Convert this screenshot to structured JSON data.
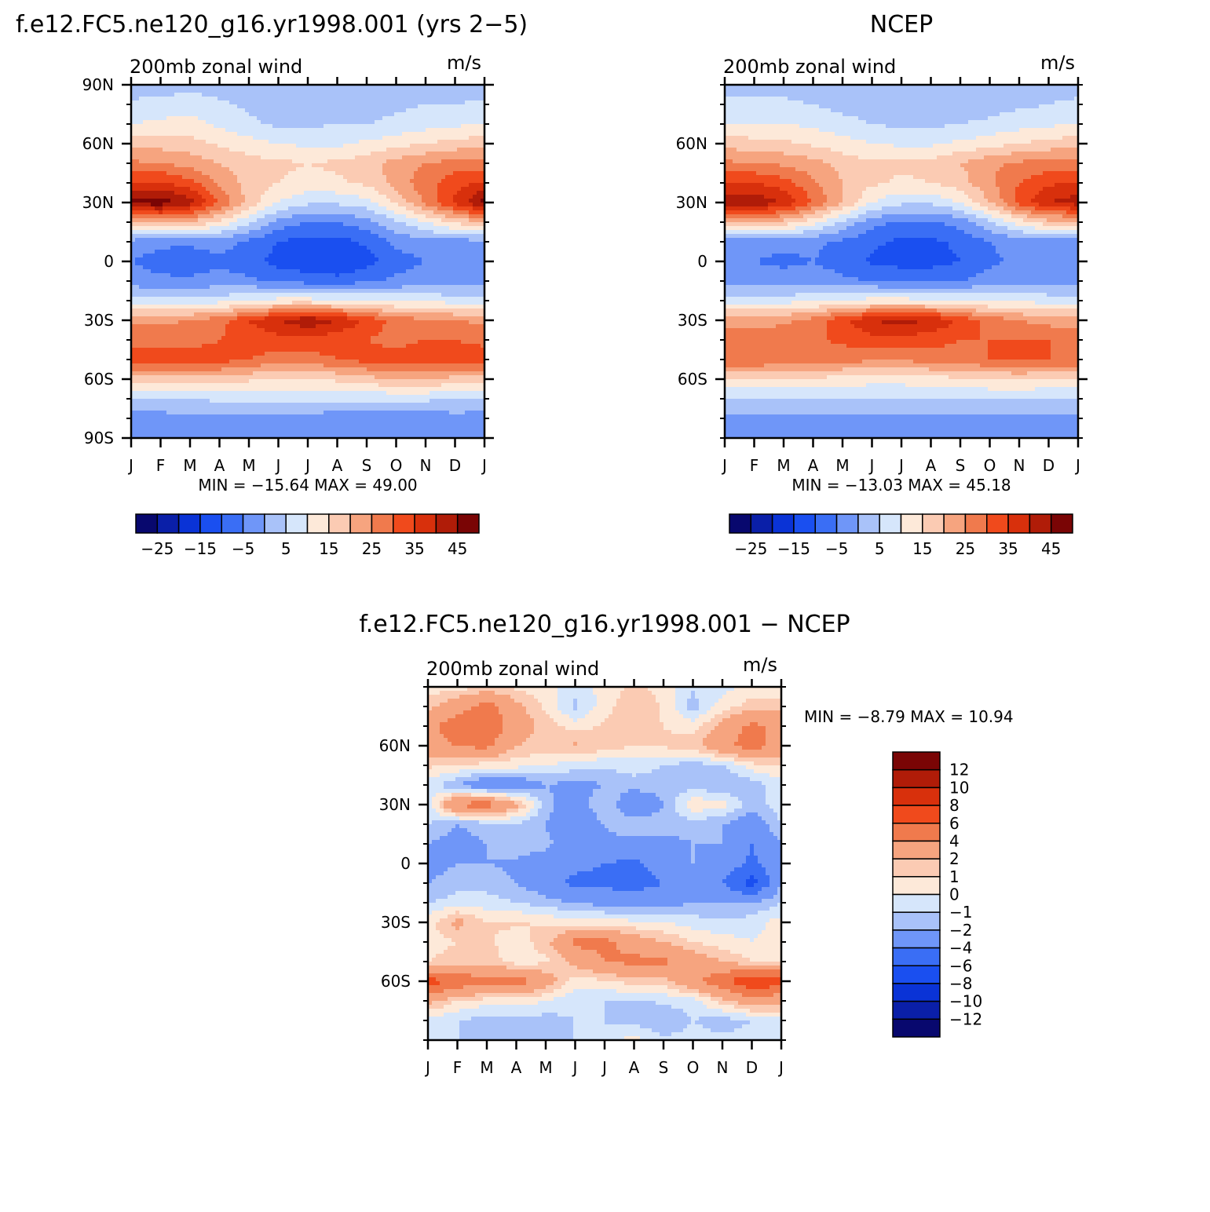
{
  "colors": {
    "full_scale": [
      "#08086e",
      "#0a1fa8",
      "#0a33d6",
      "#1a4ff0",
      "#3a6ef5",
      "#6f96f8",
      "#a9c2f9",
      "#d6e6fb",
      "#fde9d9",
      "#fbcbb3",
      "#f6a47f",
      "#f07a4d",
      "#f04a1c",
      "#d8300c",
      "#b01c08",
      "#7a0505"
    ],
    "diff_scale": [
      "#08086e",
      "#0a1fa8",
      "#0a33d6",
      "#1a4ff0",
      "#3a6ef5",
      "#6f96f8",
      "#a9c2f9",
      "#d6e6fb",
      "#fde9d9",
      "#fbcbb3",
      "#f6a47f",
      "#f07a4d",
      "#f04a1c",
      "#d8300c",
      "#b01c08",
      "#7a0505"
    ]
  },
  "chart_data": [
    {
      "type": "heatmap",
      "panel": "model",
      "title": "f.e12.FC5.ne120_g16.yr1998.001 (yrs 2−5)",
      "left_label": "200mb  zonal  wind",
      "right_label": "m/s",
      "x_ticks": [
        "J",
        "F",
        "M",
        "A",
        "M",
        "J",
        "J",
        "A",
        "S",
        "O",
        "N",
        "D",
        "J"
      ],
      "y_ticks": [
        "90N",
        "60N",
        "30N",
        "0",
        "30S",
        "60S",
        "90S"
      ],
      "stats": "MIN = −15.64  MAX =   49.00",
      "min": -15.64,
      "max": 49.0,
      "colorbar_labels": [
        "−25",
        "−15",
        "−5",
        "5",
        "15",
        "25",
        "35",
        "45"
      ],
      "levels": [
        -30,
        -25,
        -20,
        -15,
        -10,
        -5,
        0,
        5,
        10,
        15,
        20,
        25,
        30,
        35,
        40,
        45,
        50
      ],
      "latitudes": [
        90,
        80,
        70,
        60,
        50,
        40,
        30,
        20,
        10,
        0,
        -10,
        -20,
        -30,
        -40,
        -50,
        -60,
        -70,
        -80,
        -90
      ],
      "months": [
        "Jan",
        "Feb",
        "Mar",
        "Apr",
        "May",
        "Jun",
        "Jul",
        "Aug",
        "Sep",
        "Oct",
        "Nov",
        "Dec",
        "Jan"
      ],
      "z": [
        [
          2,
          2,
          3,
          2,
          2,
          2,
          2,
          3,
          3,
          2,
          2,
          2,
          2
        ],
        [
          6,
          7,
          8,
          6,
          4,
          2,
          2,
          3,
          3,
          4,
          5,
          5,
          6
        ],
        [
          10,
          11,
          12,
          9,
          6,
          4,
          4,
          5,
          5,
          6,
          8,
          9,
          10
        ],
        [
          18,
          18,
          17,
          14,
          12,
          10,
          9,
          9,
          11,
          13,
          15,
          17,
          18
        ],
        [
          26,
          25,
          23,
          20,
          17,
          16,
          15,
          16,
          18,
          22,
          25,
          27,
          26
        ],
        [
          36,
          36,
          32,
          24,
          18,
          15,
          13,
          14,
          16,
          22,
          28,
          33,
          36
        ],
        [
          47,
          48,
          42,
          30,
          18,
          10,
          6,
          6,
          8,
          16,
          26,
          36,
          47
        ],
        [
          20,
          22,
          20,
          14,
          6,
          -2,
          -5,
          -5,
          -2,
          4,
          10,
          16,
          20
        ],
        [
          -2,
          -4,
          -4,
          -3,
          -6,
          -10,
          -12,
          -12,
          -9,
          -4,
          -2,
          -2,
          -2
        ],
        [
          -5,
          -7,
          -8,
          -6,
          -8,
          -12,
          -14,
          -15,
          -12,
          -7,
          -5,
          -5,
          -5
        ],
        [
          -3,
          -4,
          -4,
          -3,
          -4,
          -6,
          -7,
          -8,
          -6,
          -4,
          -3,
          -3,
          -3
        ],
        [
          8,
          7,
          7,
          8,
          10,
          12,
          12,
          11,
          10,
          9,
          9,
          8,
          8
        ],
        [
          24,
          24,
          25,
          28,
          35,
          40,
          44,
          40,
          34,
          28,
          26,
          25,
          24
        ],
        [
          28,
          28,
          28,
          30,
          32,
          33,
          33,
          32,
          30,
          28,
          30,
          30,
          28
        ],
        [
          34,
          34,
          33,
          32,
          30,
          28,
          28,
          30,
          32,
          33,
          34,
          34,
          34
        ],
        [
          18,
          18,
          18,
          18,
          16,
          14,
          14,
          16,
          18,
          20,
          20,
          18,
          18
        ],
        [
          4,
          4,
          5,
          6,
          6,
          6,
          6,
          6,
          6,
          6,
          6,
          5,
          4
        ],
        [
          -2,
          -2,
          -1,
          -1,
          -1,
          -2,
          -2,
          -3,
          -3,
          -3,
          -3,
          -2,
          -2
        ],
        [
          -3,
          -3,
          -2,
          -2,
          -2,
          -3,
          -3,
          -4,
          -4,
          -4,
          -4,
          -3,
          -3
        ]
      ]
    },
    {
      "type": "heatmap",
      "panel": "ncep",
      "title": "NCEP",
      "left_label": "200mb  zonal  wind",
      "right_label": "m/s",
      "x_ticks": [
        "J",
        "F",
        "M",
        "A",
        "M",
        "J",
        "J",
        "A",
        "S",
        "O",
        "N",
        "D",
        "J"
      ],
      "y_ticks": [
        "60N",
        "30N",
        "0",
        "30S",
        "60S"
      ],
      "stats": "MIN = −13.03  MAX =   45.18",
      "min": -13.03,
      "max": 45.18,
      "colorbar_labels": [
        "−25",
        "−15",
        "−5",
        "5",
        "15",
        "25",
        "35",
        "45"
      ],
      "levels": [
        -30,
        -25,
        -20,
        -15,
        -10,
        -5,
        0,
        5,
        10,
        15,
        20,
        25,
        30,
        35,
        40,
        45,
        50
      ],
      "latitudes": [
        90,
        80,
        70,
        60,
        50,
        40,
        30,
        20,
        10,
        0,
        -10,
        -20,
        -30,
        -40,
        -50,
        -60,
        -70,
        -80,
        -90
      ],
      "months": [
        "Jan",
        "Feb",
        "Mar",
        "Apr",
        "May",
        "Jun",
        "Jul",
        "Aug",
        "Sep",
        "Oct",
        "Nov",
        "Dec",
        "Jan"
      ],
      "z": [
        [
          3,
          3,
          3,
          2,
          2,
          2,
          2,
          2,
          2,
          2,
          2,
          3,
          3
        ],
        [
          6,
          6,
          6,
          5,
          3,
          2,
          2,
          2,
          2,
          3,
          4,
          5,
          6
        ],
        [
          10,
          10,
          10,
          9,
          7,
          5,
          4,
          4,
          5,
          6,
          8,
          9,
          10
        ],
        [
          18,
          17,
          16,
          14,
          12,
          10,
          9,
          9,
          11,
          13,
          15,
          17,
          18
        ],
        [
          26,
          25,
          24,
          22,
          18,
          16,
          16,
          17,
          20,
          24,
          26,
          27,
          26
        ],
        [
          36,
          35,
          32,
          26,
          20,
          16,
          14,
          15,
          18,
          24,
          30,
          34,
          36
        ],
        [
          43,
          44,
          40,
          30,
          20,
          10,
          6,
          6,
          10,
          20,
          32,
          40,
          43
        ],
        [
          18,
          20,
          18,
          12,
          4,
          -3,
          -6,
          -6,
          -3,
          4,
          12,
          18,
          18
        ],
        [
          -2,
          -3,
          -4,
          -4,
          -6,
          -9,
          -11,
          -11,
          -9,
          -5,
          -3,
          -2,
          -2
        ],
        [
          -4,
          -5,
          -6,
          -5,
          -7,
          -11,
          -12,
          -12,
          -10,
          -6,
          -4,
          -4,
          -4
        ],
        [
          -2,
          -3,
          -3,
          -3,
          -4,
          -5,
          -6,
          -6,
          -5,
          -3,
          -2,
          -2,
          -2
        ],
        [
          8,
          8,
          8,
          9,
          10,
          12,
          12,
          11,
          10,
          9,
          9,
          8,
          8
        ],
        [
          22,
          23,
          24,
          27,
          34,
          40,
          42,
          40,
          34,
          28,
          25,
          23,
          22
        ],
        [
          28,
          28,
          28,
          29,
          31,
          33,
          33,
          32,
          30,
          30,
          30,
          30,
          28
        ],
        [
          30,
          30,
          29,
          28,
          27,
          26,
          26,
          27,
          28,
          30,
          30,
          30,
          30
        ],
        [
          14,
          14,
          14,
          14,
          13,
          12,
          12,
          13,
          14,
          15,
          16,
          15,
          14
        ],
        [
          4,
          4,
          4,
          5,
          5,
          5,
          5,
          5,
          5,
          5,
          5,
          4,
          4
        ],
        [
          -1,
          -1,
          -1,
          -1,
          -1,
          -1,
          -2,
          -2,
          -2,
          -2,
          -2,
          -1,
          -1
        ],
        [
          -2,
          -2,
          -2,
          -2,
          -2,
          -3,
          -3,
          -3,
          -3,
          -3,
          -3,
          -2,
          -2
        ]
      ]
    },
    {
      "type": "heatmap",
      "panel": "difference",
      "title": "f.e12.FC5.ne120_g16.yr1998.001 − NCEP",
      "left_label": "200mb  zonal  wind",
      "right_label": "m/s",
      "x_ticks": [
        "J",
        "F",
        "M",
        "A",
        "M",
        "J",
        "J",
        "A",
        "S",
        "O",
        "N",
        "D",
        "J"
      ],
      "y_ticks": [
        "60N",
        "30N",
        "0",
        "30S",
        "60S"
      ],
      "stats": "MIN =   −8.79  MAX =   10.94",
      "min": -8.79,
      "max": 10.94,
      "colorbar_labels": [
        "12",
        "10",
        "8",
        "6",
        "4",
        "2",
        "1",
        "0",
        "−1",
        "−2",
        "−4",
        "−6",
        "−8",
        "−10",
        "−12"
      ],
      "levels": [
        -14,
        -12,
        -10,
        -8,
        -6,
        -4,
        -2,
        -1,
        0,
        1,
        2,
        4,
        6,
        8,
        10,
        12,
        14
      ],
      "latitudes": [
        90,
        80,
        70,
        60,
        50,
        40,
        30,
        20,
        10,
        0,
        -10,
        -20,
        -30,
        -40,
        -50,
        -60,
        -70,
        -80,
        -90
      ],
      "months": [
        "Jan",
        "Feb",
        "Mar",
        "Apr",
        "May",
        "Jun",
        "Jul",
        "Aug",
        "Sep",
        "Oct",
        "Nov",
        "Dec",
        "Jan"
      ],
      "z": [
        [
          0.5,
          0.5,
          1.2,
          0.8,
          0.4,
          -0.5,
          0.4,
          1.2,
          0.6,
          -0.8,
          -0.4,
          0.3,
          0.5
        ],
        [
          1.5,
          3.2,
          4.8,
          2.5,
          0.8,
          -1.3,
          0.5,
          2.0,
          0.8,
          -1.5,
          0.5,
          1.5,
          1.5
        ],
        [
          3.5,
          5.0,
          5.5,
          3.0,
          1.5,
          0.5,
          1.2,
          1.5,
          1.0,
          0.5,
          2.5,
          4.5,
          3.5
        ],
        [
          3.0,
          4.2,
          4.5,
          2.0,
          1.5,
          2.2,
          1.5,
          1.0,
          1.2,
          1.5,
          3.5,
          5.0,
          3.0
        ],
        [
          1.2,
          1.0,
          0.5,
          0.4,
          0.0,
          -0.5,
          -0.8,
          -0.5,
          -1.0,
          -1.5,
          -1.0,
          0.5,
          1.2
        ],
        [
          -0.5,
          -2.0,
          -3.5,
          -3.5,
          -2.0,
          -2.5,
          -2.0,
          -1.5,
          -1.5,
          -1.5,
          -2.0,
          -1.5,
          -0.5
        ],
        [
          -0.5,
          4.5,
          5.0,
          2.5,
          -1.5,
          -3.0,
          -0.8,
          -3.5,
          -2.0,
          0.8,
          0.5,
          -1.5,
          -0.5
        ],
        [
          -1.0,
          -2.0,
          -1.5,
          -1.2,
          -2.0,
          -3.5,
          -2.0,
          -1.2,
          -1.5,
          -1.5,
          -2.0,
          -3.0,
          -1.0
        ],
        [
          -2.0,
          -2.5,
          -2.0,
          -1.5,
          -1.8,
          -2.5,
          -2.2,
          -2.5,
          -2.5,
          -2.0,
          -2.0,
          -4.0,
          -2.0
        ],
        [
          -2.5,
          -2.0,
          -2.0,
          -2.2,
          -2.5,
          -3.5,
          -4.0,
          -4.5,
          -3.0,
          -2.0,
          -2.5,
          -4.5,
          -2.5
        ],
        [
          -2.0,
          -1.5,
          -1.5,
          -2.0,
          -3.0,
          -4.5,
          -4.5,
          -5.0,
          -4.0,
          -3.0,
          -4.0,
          -7.0,
          -2.0
        ],
        [
          -1.0,
          -0.5,
          -0.5,
          -1.0,
          -1.5,
          -2.0,
          -2.5,
          -2.5,
          -2.5,
          -2.0,
          -2.0,
          -2.0,
          -1.0
        ],
        [
          0.5,
          2.5,
          1.0,
          1.2,
          0.8,
          0.5,
          0.5,
          0.2,
          0.0,
          -0.5,
          -0.8,
          -0.5,
          0.5
        ],
        [
          0.5,
          1.0,
          1.2,
          0.5,
          1.5,
          4.5,
          4.5,
          3.0,
          2.0,
          1.0,
          0.5,
          0.0,
          0.5
        ],
        [
          1.0,
          1.5,
          1.5,
          0.5,
          0.8,
          2.5,
          4.0,
          4.5,
          4.5,
          3.0,
          2.0,
          1.0,
          1.0
        ],
        [
          7.0,
          5.5,
          4.5,
          5.0,
          3.0,
          0.5,
          0.8,
          1.5,
          1.5,
          3.5,
          5.5,
          8.0,
          7.0
        ],
        [
          2.5,
          1.0,
          0.5,
          0.5,
          0.0,
          -0.8,
          -1.0,
          -1.2,
          -0.8,
          -0.5,
          1.5,
          3.0,
          2.5
        ],
        [
          -0.5,
          -1.0,
          -1.5,
          -1.2,
          -1.5,
          -1.0,
          -1.0,
          -1.5,
          -2.0,
          -1.0,
          -1.5,
          -1.0,
          -0.5
        ],
        [
          -0.5,
          -1.0,
          -1.0,
          -1.0,
          -1.2,
          -1.0,
          -0.8,
          0.5,
          -0.8,
          -0.5,
          -0.8,
          -0.5,
          -0.5
        ]
      ]
    }
  ]
}
